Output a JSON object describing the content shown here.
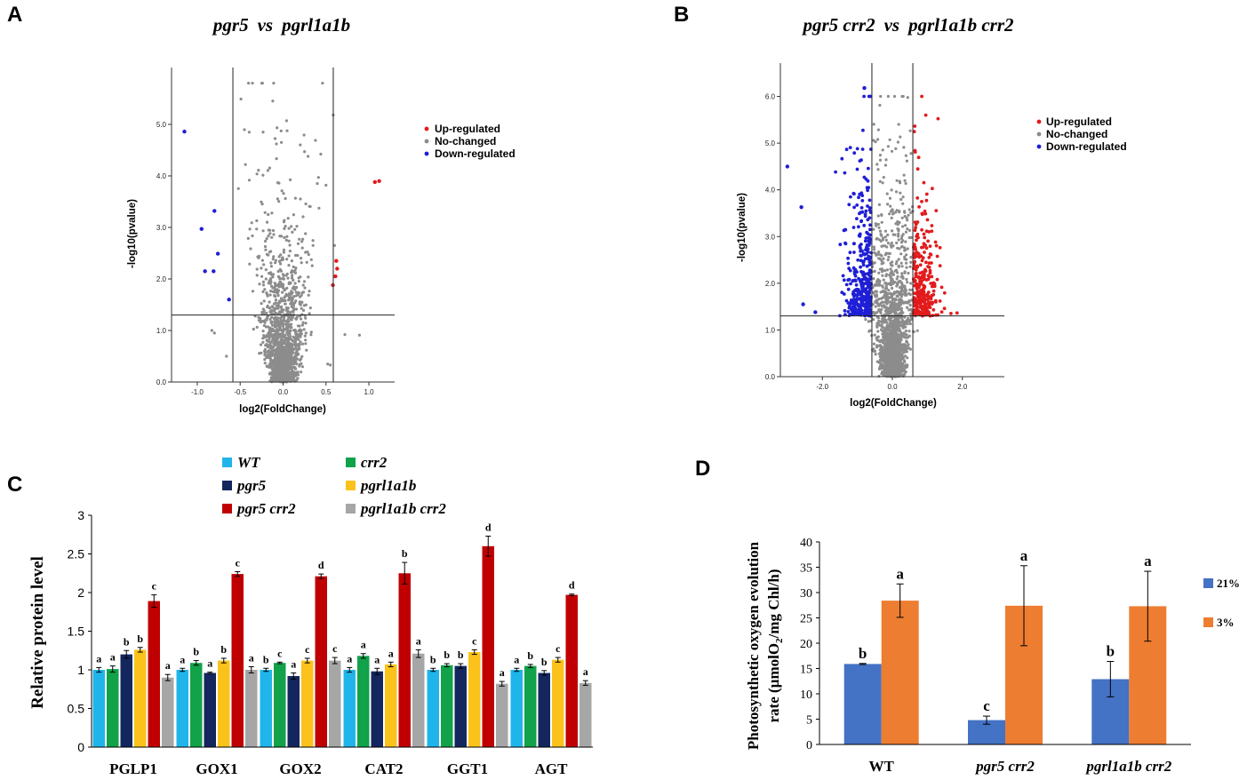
{
  "colors": {
    "up": "#e31a1c",
    "nochange": "#8c8c8c",
    "down": "#1f1fd6",
    "wt": "#1fb5ea",
    "crr2": "#11a24a",
    "pgr5": "#13265e",
    "pgrl1a1b": "#fbc21b",
    "pgr5crr2": "#c00000",
    "pgrl1a1bcrr2": "#a6a6a6",
    "o21": "#4472c4",
    "o3": "#ed7d31"
  },
  "chart_data": [
    {
      "panel": "A",
      "type": "scatter",
      "title_a": "pgr5",
      "title_vs": "vs",
      "title_b": "pgrl1a1b",
      "xlabel": "log2(FoldChange)",
      "ylabel": "-log10(pvalue)",
      "xlim": [
        -1.3,
        1.3
      ],
      "ylim": [
        0,
        6
      ],
      "xticks": [
        -1.0,
        -0.5,
        0.0,
        0.5,
        1.0
      ],
      "xtick_labels": [
        "-1.0",
        "-0.5",
        "0.0",
        "0.5",
        "1.0"
      ],
      "yticks": [
        0,
        1,
        2,
        3,
        4,
        5
      ],
      "ytick_labels": [
        "0.0",
        "1.0",
        "2.0",
        "3.0",
        "4.0",
        "5.0"
      ],
      "fc_threshold": [
        -0.585,
        0.585
      ],
      "p_threshold": 1.3,
      "legend": [
        "Up-regulated",
        "No-changed",
        "Down-regulated"
      ],
      "up": [
        [
          1.07,
          3.88
        ],
        [
          1.12,
          3.9
        ],
        [
          0.62,
          2.35
        ],
        [
          0.63,
          2.2
        ],
        [
          0.61,
          2.05
        ],
        [
          0.58,
          1.88
        ]
      ],
      "down": [
        [
          -1.15,
          4.86
        ],
        [
          -0.8,
          3.32
        ],
        [
          -0.95,
          2.97
        ],
        [
          -0.76,
          2.49
        ],
        [
          -0.91,
          2.15
        ],
        [
          -0.81,
          2.15
        ],
        [
          -0.63,
          1.6
        ]
      ],
      "nochange": {
        "count": 1500,
        "seed": 7,
        "sigma_x": 0.15,
        "max_y": 5.8,
        "outliers": [
          [
            -0.24,
            5.8
          ],
          [
            -0.02,
            4.65
          ],
          [
            0.25,
            4.47
          ],
          [
            0.5,
            3.82
          ],
          [
            0.6,
            2.65
          ],
          [
            0.72,
            0.92
          ],
          [
            0.89,
            0.91
          ],
          [
            -0.8,
            0.95
          ],
          [
            -0.83,
            1.0
          ],
          [
            -0.66,
            0.5
          ],
          [
            0.52,
            0.35
          ],
          [
            0.55,
            0.33
          ]
        ]
      }
    },
    {
      "panel": "B",
      "type": "scatter",
      "title_a": "pgr5 crr2",
      "title_vs": "vs",
      "title_b": "pgrl1a1b crr2",
      "xlabel": "log2(FoldChange)",
      "ylabel": "-log10(pvalue)",
      "xlim": [
        -3.2,
        3.2
      ],
      "ylim": [
        0,
        6.6
      ],
      "xticks": [
        -2.0,
        0.0,
        2.0
      ],
      "xtick_labels": [
        "-2.0",
        "0.0",
        "2.0"
      ],
      "yticks": [
        0,
        1,
        2,
        3,
        4,
        5,
        6
      ],
      "ytick_labels": [
        "0.0",
        "1.0",
        "2.0",
        "3.0",
        "4.0",
        "5.0",
        "6.0"
      ],
      "fc_threshold": [
        -0.585,
        0.585
      ],
      "p_threshold": 1.3,
      "legend": [
        "Up-regulated",
        "No-changed",
        "Down-regulated"
      ],
      "up": {
        "count": 300,
        "seed": 11
      },
      "down": {
        "count": 380,
        "seed": 13,
        "outliers": [
          [
            -3.0,
            4.5
          ],
          [
            -2.6,
            3.63
          ],
          [
            -0.8,
            6.18
          ],
          [
            -2.55,
            1.55
          ],
          [
            -2.2,
            1.38
          ]
        ]
      },
      "nochange": {
        "count": 1700,
        "seed": 17,
        "sigma_x": 0.3
      }
    },
    {
      "panel": "C",
      "type": "bar",
      "ylabel": "Relative protein level",
      "ylim": [
        0,
        3
      ],
      "yticks": [
        0,
        0.5,
        1,
        1.5,
        2,
        2.5,
        3
      ],
      "ytick_labels": [
        "0",
        "0.5",
        "1",
        "1.5",
        "2",
        "2.5",
        "3"
      ],
      "categories": [
        "PGLP1",
        "GOX1",
        "GOX2",
        "CAT2",
        "GGT1",
        "AGT"
      ],
      "series": [
        {
          "name": "WT",
          "values": [
            1.0,
            1.0,
            1.0,
            1.0,
            1.0,
            1.0
          ],
          "errors": [
            0.03,
            0.02,
            0.02,
            0.03,
            0.02,
            0.02
          ],
          "letters": [
            "a",
            "a",
            "b",
            "a",
            "b",
            "a"
          ]
        },
        {
          "name": "crr2",
          "values": [
            1.01,
            1.09,
            1.09,
            1.18,
            1.06,
            1.05
          ],
          "errors": [
            0.04,
            0.03,
            0.01,
            0.03,
            0.02,
            0.02
          ],
          "letters": [
            "a",
            "b",
            "c",
            "a",
            "b",
            "b"
          ]
        },
        {
          "name": "pgr5",
          "values": [
            1.2,
            0.96,
            0.92,
            0.98,
            1.05,
            0.96
          ],
          "errors": [
            0.05,
            0.01,
            0.04,
            0.04,
            0.03,
            0.03
          ],
          "letters": [
            "b",
            "a",
            "a",
            "a",
            "b",
            "b"
          ]
        },
        {
          "name": "pgrl1a1b",
          "values": [
            1.26,
            1.12,
            1.12,
            1.07,
            1.23,
            1.13
          ],
          "errors": [
            0.03,
            0.03,
            0.03,
            0.03,
            0.03,
            0.03
          ],
          "letters": [
            "b",
            "b",
            "c",
            "a",
            "c",
            "c"
          ]
        },
        {
          "name": "pgr5 crr2",
          "values": [
            1.89,
            2.24,
            2.21,
            2.25,
            2.6,
            1.97
          ],
          "errors": [
            0.08,
            0.03,
            0.03,
            0.14,
            0.13,
            0.01
          ],
          "letters": [
            "c",
            "c",
            "d",
            "b",
            "d",
            "d"
          ]
        },
        {
          "name": "pgrl1a1b crr2",
          "values": [
            0.9,
            1.0,
            1.12,
            1.21,
            0.82,
            0.83
          ],
          "errors": [
            0.04,
            0.04,
            0.04,
            0.05,
            0.03,
            0.03
          ],
          "letters": [
            "a",
            "a",
            "c",
            "a",
            "a",
            "a"
          ]
        }
      ]
    },
    {
      "panel": "D",
      "type": "bar",
      "ylabel_line1": "Photosynthetic oxygen evolution",
      "ylabel_line2_pre": "rate (µmolO",
      "ylabel_line2_sub": "2",
      "ylabel_line2_post": "/mg Chl/h)",
      "ylim": [
        0,
        40
      ],
      "yticks": [
        0,
        5,
        10,
        15,
        20,
        25,
        30,
        35,
        40
      ],
      "ytick_labels": [
        "0",
        "5",
        "10",
        "15",
        "20",
        "25",
        "30",
        "35",
        "40"
      ],
      "categories": [
        "WT",
        "pgr5 crr2",
        "pgrl1a1b crr2"
      ],
      "series": [
        {
          "name": "21%",
          "values": [
            15.9,
            4.8,
            12.9
          ],
          "errors": [
            0.1,
            0.8,
            3.5
          ],
          "letters": [
            "b",
            "c",
            "b"
          ]
        },
        {
          "name": "3%",
          "values": [
            28.4,
            27.4,
            27.3
          ],
          "errors": [
            3.3,
            7.9,
            6.9
          ],
          "letters": [
            "a",
            "a",
            "a"
          ]
        }
      ]
    }
  ],
  "panels": {
    "a": "A",
    "b": "B",
    "c": "C",
    "d": "D"
  }
}
